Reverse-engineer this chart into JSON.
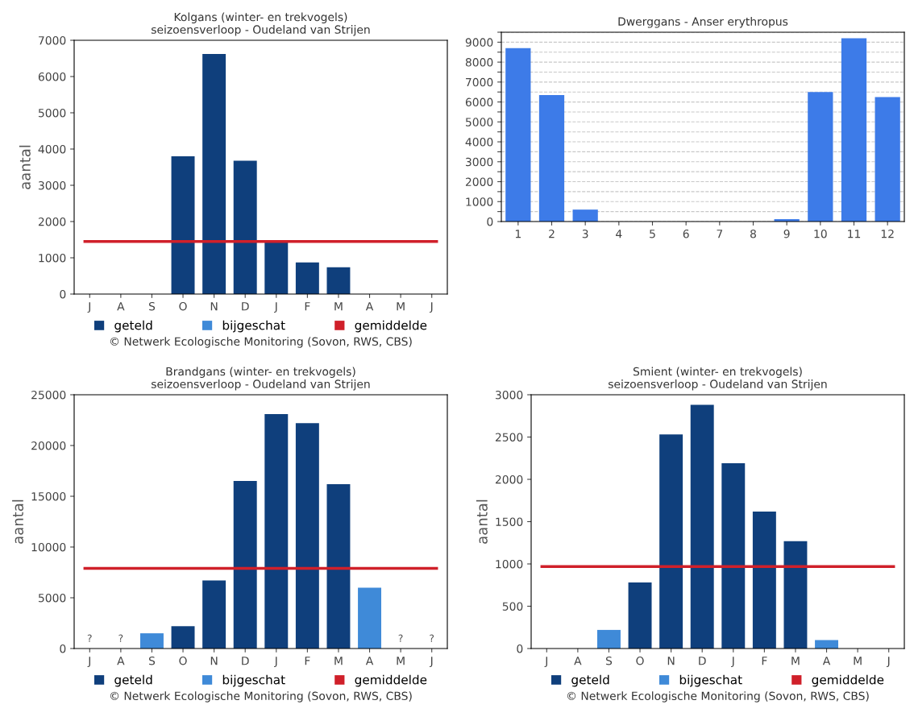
{
  "chart_data": [
    {
      "type": "bar",
      "title": "Kolgans (winter- en trekvogels)\nseizoensverloop - Oudeland van Strijen",
      "ylabel": "aantal",
      "categories": [
        "J",
        "A",
        "S",
        "O",
        "N",
        "D",
        "J",
        "F",
        "M",
        "A",
        "M",
        "J"
      ],
      "series": [
        {
          "name": "geteld",
          "color": "#0f3f7c",
          "values": [
            null,
            null,
            null,
            3800,
            6620,
            3680,
            1450,
            870,
            740,
            null,
            null,
            null
          ]
        },
        {
          "name": "bijgeschat",
          "color": "#3f8ad8",
          "values": [
            null,
            null,
            null,
            null,
            null,
            null,
            null,
            null,
            null,
            null,
            null,
            null
          ]
        }
      ],
      "ref_lines": [
        {
          "axis": "y",
          "value": 1450,
          "label": "gemiddelde",
          "color": "#d0202a"
        }
      ],
      "ylim": [
        0,
        7000
      ],
      "yticks": [
        0,
        1000,
        2000,
        3000,
        4000,
        5000,
        6000,
        7000
      ],
      "legend": "bottom",
      "annotations": [
        "© Netwerk Ecologische Monitoring (Sovon, RWS, CBS)"
      ]
    },
    {
      "type": "bar",
      "title": "Dwerggans - Anser erythropus",
      "categories": [
        "1",
        "2",
        "3",
        "4",
        "5",
        "6",
        "7",
        "8",
        "9",
        "10",
        "11",
        "12"
      ],
      "series": [
        {
          "color": "#3d7be8",
          "values": [
            8700,
            6350,
            600,
            0,
            0,
            0,
            0,
            0,
            120,
            6500,
            9200,
            6250
          ]
        }
      ],
      "ylim": [
        0,
        9500
      ],
      "yticks": [
        0,
        {
          "value": 500,
          "label": null
        },
        1000,
        {
          "value": 1500,
          "label": null
        },
        2000,
        {
          "value": 2500,
          "label": null
        },
        3000,
        {
          "value": 3500,
          "label": null
        },
        4000,
        {
          "value": 4500,
          "label": null
        },
        5000,
        {
          "value": 5500,
          "label": null
        },
        6000,
        {
          "value": 6500,
          "label": null
        },
        7000,
        {
          "value": 7500,
          "label": null
        },
        8000,
        {
          "value": 8500,
          "label": null
        },
        9000,
        {
          "value": 9500,
          "label": null
        }
      ],
      "grid": "y"
    },
    {
      "type": "bar",
      "title": "Brandgans (winter- en trekvogels)\nseizoensverloop - Oudeland van Strijen",
      "ylabel": "aantal",
      "categories": [
        "J",
        "A",
        "S",
        "O",
        "N",
        "D",
        "J",
        "F",
        "M",
        "A",
        "M",
        "J"
      ],
      "series": [
        {
          "name": "geteld",
          "color": "#0f3f7c",
          "values": [
            null,
            null,
            null,
            2200,
            6700,
            16500,
            23100,
            22200,
            16200,
            null,
            null,
            null
          ],
          "value_labels": [
            "?",
            "?",
            null,
            null,
            null,
            null,
            null,
            null,
            null,
            null,
            "?",
            "?"
          ]
        },
        {
          "name": "bijgeschat",
          "color": "#3f8ad8",
          "values": [
            null,
            null,
            1500,
            null,
            null,
            null,
            null,
            null,
            null,
            6000,
            null,
            null
          ]
        }
      ],
      "ref_lines": [
        {
          "axis": "y",
          "value": 7900,
          "label": "gemiddelde",
          "color": "#d0202a"
        }
      ],
      "ylim": [
        0,
        25000
      ],
      "yticks": [
        0,
        5000,
        10000,
        15000,
        20000,
        25000
      ],
      "legend": "bottom",
      "annotations": [
        "© Netwerk Ecologische Monitoring (Sovon, RWS, CBS)"
      ]
    },
    {
      "type": "bar",
      "title": "Smient (winter- en trekvogels)\nseizoensverloop - Oudeland van Strijen",
      "ylabel": "aantal",
      "categories": [
        "J",
        "A",
        "S",
        "O",
        "N",
        "D",
        "J",
        "F",
        "M",
        "A",
        "M",
        "J"
      ],
      "series": [
        {
          "name": "geteld",
          "color": "#0f3f7c",
          "values": [
            null,
            null,
            null,
            780,
            2530,
            2880,
            2190,
            1620,
            1270,
            null,
            null,
            null
          ]
        },
        {
          "name": "bijgeschat",
          "color": "#3f8ad8",
          "values": [
            null,
            null,
            220,
            null,
            null,
            null,
            null,
            null,
            null,
            100,
            null,
            null
          ]
        }
      ],
      "ref_lines": [
        {
          "axis": "y",
          "value": 970,
          "label": "gemiddelde",
          "color": "#d0202a"
        }
      ],
      "ylim": [
        0,
        3000
      ],
      "yticks": [
        0,
        500,
        1000,
        1500,
        2000,
        2500,
        3000
      ],
      "legend": "bottom",
      "annotations": [
        "© Netwerk Ecologische Monitoring (Sovon, RWS, CBS)"
      ]
    }
  ]
}
